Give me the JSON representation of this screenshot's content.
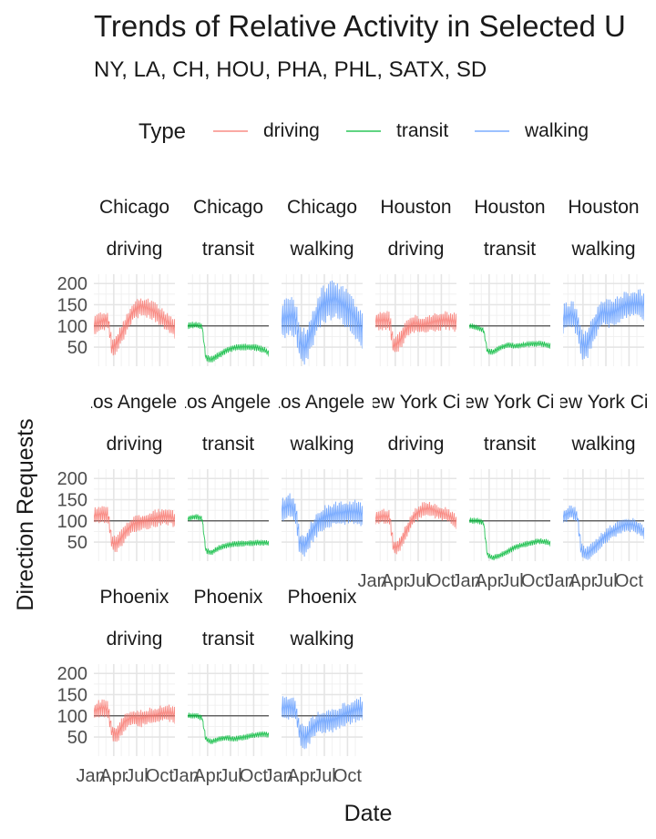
{
  "chart_data": {
    "type": "line",
    "title": "Trends of Relative Activity in Selected U",
    "subtitle": "NY, LA, CH, HOU, PHA, PHL, SATX, SD",
    "xlabel": "Date",
    "ylabel": "Direction Requests",
    "legend": {
      "title": "Type",
      "placement": "top",
      "entries": [
        {
          "label": "driving",
          "color": "#F8766D"
        },
        {
          "label": "transit",
          "color": "#00BA38"
        },
        {
          "label": "walking",
          "color": "#619CFF"
        }
      ]
    },
    "x_ticks": [
      "Jan",
      "Apr",
      "Jul",
      "Oct"
    ],
    "xlim": [
      "2020-01-13",
      "2020-11-30"
    ],
    "y_ticks": [
      50,
      100,
      150,
      200
    ],
    "ylim": [
      5,
      222
    ],
    "reference_line": 100,
    "grid": true,
    "facet_rows": 3,
    "facet_cols": 6,
    "panels": [
      {
        "city": "Chicago",
        "type": "driving",
        "points": [
          [
            "2020-01-13",
            100
          ],
          [
            "2020-02-15",
            110
          ],
          [
            "2020-03-10",
            112
          ],
          [
            "2020-03-25",
            45
          ],
          [
            "2020-04-15",
            60
          ],
          [
            "2020-05-15",
            95
          ],
          [
            "2020-06-15",
            130
          ],
          [
            "2020-07-15",
            145
          ],
          [
            "2020-08-15",
            140
          ],
          [
            "2020-09-15",
            130
          ],
          [
            "2020-10-15",
            115
          ],
          [
            "2020-11-15",
            100
          ],
          [
            "2020-11-30",
            90
          ]
        ],
        "amplitude": 20
      },
      {
        "city": "Chicago",
        "type": "transit",
        "points": [
          [
            "2020-01-13",
            100
          ],
          [
            "2020-02-15",
            102
          ],
          [
            "2020-03-10",
            98
          ],
          [
            "2020-03-25",
            25
          ],
          [
            "2020-04-15",
            20
          ],
          [
            "2020-05-15",
            30
          ],
          [
            "2020-06-15",
            42
          ],
          [
            "2020-07-15",
            48
          ],
          [
            "2020-08-15",
            50
          ],
          [
            "2020-09-15",
            50
          ],
          [
            "2020-10-15",
            48
          ],
          [
            "2020-11-15",
            42
          ],
          [
            "2020-11-30",
            35
          ]
        ],
        "amplitude": 7
      },
      {
        "city": "Chicago",
        "type": "walking",
        "points": [
          [
            "2020-01-13",
            110
          ],
          [
            "2020-02-15",
            120
          ],
          [
            "2020-03-10",
            115
          ],
          [
            "2020-03-25",
            55
          ],
          [
            "2020-04-15",
            45
          ],
          [
            "2020-05-15",
            90
          ],
          [
            "2020-06-15",
            140
          ],
          [
            "2020-07-15",
            155
          ],
          [
            "2020-08-15",
            160
          ],
          [
            "2020-09-15",
            145
          ],
          [
            "2020-10-15",
            130
          ],
          [
            "2020-11-15",
            100
          ],
          [
            "2020-11-30",
            85
          ]
        ],
        "amplitude": 40
      },
      {
        "city": "Houston",
        "type": "driving",
        "points": [
          [
            "2020-01-13",
            110
          ],
          [
            "2020-02-15",
            112
          ],
          [
            "2020-03-10",
            110
          ],
          [
            "2020-03-25",
            50
          ],
          [
            "2020-04-15",
            60
          ],
          [
            "2020-05-15",
            90
          ],
          [
            "2020-06-15",
            105
          ],
          [
            "2020-07-15",
            100
          ],
          [
            "2020-08-15",
            105
          ],
          [
            "2020-09-15",
            110
          ],
          [
            "2020-10-15",
            112
          ],
          [
            "2020-11-15",
            110
          ],
          [
            "2020-11-30",
            105
          ]
        ],
        "amplitude": 20
      },
      {
        "city": "Houston",
        "type": "transit",
        "points": [
          [
            "2020-01-13",
            100
          ],
          [
            "2020-02-15",
            95
          ],
          [
            "2020-03-10",
            90
          ],
          [
            "2020-03-25",
            40
          ],
          [
            "2020-04-15",
            38
          ],
          [
            "2020-05-15",
            48
          ],
          [
            "2020-06-15",
            55
          ],
          [
            "2020-07-15",
            52
          ],
          [
            "2020-08-15",
            55
          ],
          [
            "2020-09-15",
            57
          ],
          [
            "2020-10-15",
            58
          ],
          [
            "2020-11-15",
            55
          ],
          [
            "2020-11-30",
            52
          ]
        ],
        "amplitude": 6
      },
      {
        "city": "Houston",
        "type": "walking",
        "points": [
          [
            "2020-01-13",
            115
          ],
          [
            "2020-02-15",
            125
          ],
          [
            "2020-03-10",
            110
          ],
          [
            "2020-03-25",
            55
          ],
          [
            "2020-04-15",
            50
          ],
          [
            "2020-05-15",
            95
          ],
          [
            "2020-06-15",
            130
          ],
          [
            "2020-07-15",
            125
          ],
          [
            "2020-08-15",
            135
          ],
          [
            "2020-09-15",
            145
          ],
          [
            "2020-10-15",
            150
          ],
          [
            "2020-11-15",
            150
          ],
          [
            "2020-11-30",
            145
          ]
        ],
        "amplitude": 30
      },
      {
        "city": "Los Angeles",
        "type": "driving",
        "points": [
          [
            "2020-01-13",
            110
          ],
          [
            "2020-02-15",
            115
          ],
          [
            "2020-03-10",
            112
          ],
          [
            "2020-03-25",
            45
          ],
          [
            "2020-04-15",
            45
          ],
          [
            "2020-05-15",
            70
          ],
          [
            "2020-06-15",
            90
          ],
          [
            "2020-07-15",
            95
          ],
          [
            "2020-08-15",
            100
          ],
          [
            "2020-09-15",
            105
          ],
          [
            "2020-10-15",
            110
          ],
          [
            "2020-11-15",
            108
          ],
          [
            "2020-11-30",
            100
          ]
        ],
        "amplitude": 18
      },
      {
        "city": "Los Angeles",
        "type": "transit",
        "points": [
          [
            "2020-01-13",
            105
          ],
          [
            "2020-02-15",
            110
          ],
          [
            "2020-03-10",
            105
          ],
          [
            "2020-03-25",
            30
          ],
          [
            "2020-04-15",
            25
          ],
          [
            "2020-05-15",
            35
          ],
          [
            "2020-06-15",
            42
          ],
          [
            "2020-07-15",
            45
          ],
          [
            "2020-08-15",
            46
          ],
          [
            "2020-09-15",
            47
          ],
          [
            "2020-10-15",
            48
          ],
          [
            "2020-11-15",
            48
          ],
          [
            "2020-11-30",
            46
          ]
        ],
        "amplitude": 6
      },
      {
        "city": "Los Angeles",
        "type": "walking",
        "points": [
          [
            "2020-01-13",
            125
          ],
          [
            "2020-02-15",
            135
          ],
          [
            "2020-03-10",
            120
          ],
          [
            "2020-03-25",
            45
          ],
          [
            "2020-04-15",
            40
          ],
          [
            "2020-05-15",
            75
          ],
          [
            "2020-06-15",
            100
          ],
          [
            "2020-07-15",
            110
          ],
          [
            "2020-08-15",
            115
          ],
          [
            "2020-09-15",
            118
          ],
          [
            "2020-10-15",
            120
          ],
          [
            "2020-11-15",
            118
          ],
          [
            "2020-11-30",
            112
          ]
        ],
        "amplitude": 25
      },
      {
        "city": "New York City",
        "type": "driving",
        "points": [
          [
            "2020-01-13",
            105
          ],
          [
            "2020-02-15",
            110
          ],
          [
            "2020-03-10",
            108
          ],
          [
            "2020-03-25",
            35
          ],
          [
            "2020-04-15",
            40
          ],
          [
            "2020-05-15",
            75
          ],
          [
            "2020-06-15",
            110
          ],
          [
            "2020-07-15",
            125
          ],
          [
            "2020-08-15",
            128
          ],
          [
            "2020-09-15",
            120
          ],
          [
            "2020-10-15",
            115
          ],
          [
            "2020-11-15",
            105
          ],
          [
            "2020-11-30",
            95
          ]
        ],
        "amplitude": 15
      },
      {
        "city": "New York City",
        "type": "transit",
        "points": [
          [
            "2020-01-13",
            100
          ],
          [
            "2020-02-15",
            100
          ],
          [
            "2020-03-10",
            95
          ],
          [
            "2020-03-25",
            20
          ],
          [
            "2020-04-15",
            12
          ],
          [
            "2020-05-15",
            18
          ],
          [
            "2020-06-15",
            28
          ],
          [
            "2020-07-15",
            38
          ],
          [
            "2020-08-15",
            43
          ],
          [
            "2020-09-15",
            48
          ],
          [
            "2020-10-15",
            52
          ],
          [
            "2020-11-15",
            50
          ],
          [
            "2020-11-30",
            46
          ]
        ],
        "amplitude": 6
      },
      {
        "city": "New York City",
        "type": "walking",
        "points": [
          [
            "2020-01-13",
            110
          ],
          [
            "2020-02-15",
            120
          ],
          [
            "2020-03-10",
            110
          ],
          [
            "2020-03-25",
            30
          ],
          [
            "2020-04-15",
            20
          ],
          [
            "2020-05-15",
            35
          ],
          [
            "2020-06-15",
            55
          ],
          [
            "2020-07-15",
            70
          ],
          [
            "2020-08-15",
            80
          ],
          [
            "2020-09-15",
            90
          ],
          [
            "2020-10-15",
            90
          ],
          [
            "2020-11-15",
            80
          ],
          [
            "2020-11-30",
            70
          ]
        ],
        "amplitude": 15
      },
      {
        "city": "Phoenix",
        "type": "driving",
        "points": [
          [
            "2020-01-13",
            110
          ],
          [
            "2020-02-15",
            118
          ],
          [
            "2020-03-10",
            112
          ],
          [
            "2020-03-25",
            60
          ],
          [
            "2020-04-15",
            55
          ],
          [
            "2020-05-15",
            85
          ],
          [
            "2020-06-15",
            95
          ],
          [
            "2020-07-15",
            92
          ],
          [
            "2020-08-15",
            97
          ],
          [
            "2020-09-15",
            100
          ],
          [
            "2020-10-15",
            105
          ],
          [
            "2020-11-15",
            105
          ],
          [
            "2020-11-30",
            100
          ]
        ],
        "amplitude": 18
      },
      {
        "city": "Phoenix",
        "type": "transit",
        "points": [
          [
            "2020-01-13",
            100
          ],
          [
            "2020-02-15",
            100
          ],
          [
            "2020-03-10",
            95
          ],
          [
            "2020-03-25",
            45
          ],
          [
            "2020-04-15",
            38
          ],
          [
            "2020-05-15",
            45
          ],
          [
            "2020-06-15",
            48
          ],
          [
            "2020-07-15",
            45
          ],
          [
            "2020-08-15",
            48
          ],
          [
            "2020-09-15",
            52
          ],
          [
            "2020-10-15",
            55
          ],
          [
            "2020-11-15",
            57
          ],
          [
            "2020-11-30",
            55
          ]
        ],
        "amplitude": 6
      },
      {
        "city": "Phoenix",
        "type": "walking",
        "points": [
          [
            "2020-01-13",
            115
          ],
          [
            "2020-02-15",
            120
          ],
          [
            "2020-03-10",
            110
          ],
          [
            "2020-03-25",
            60
          ],
          [
            "2020-04-15",
            45
          ],
          [
            "2020-05-15",
            70
          ],
          [
            "2020-06-15",
            85
          ],
          [
            "2020-07-15",
            85
          ],
          [
            "2020-08-15",
            90
          ],
          [
            "2020-09-15",
            100
          ],
          [
            "2020-10-15",
            108
          ],
          [
            "2020-11-15",
            115
          ],
          [
            "2020-11-30",
            112
          ]
        ],
        "amplitude": 25
      }
    ]
  }
}
